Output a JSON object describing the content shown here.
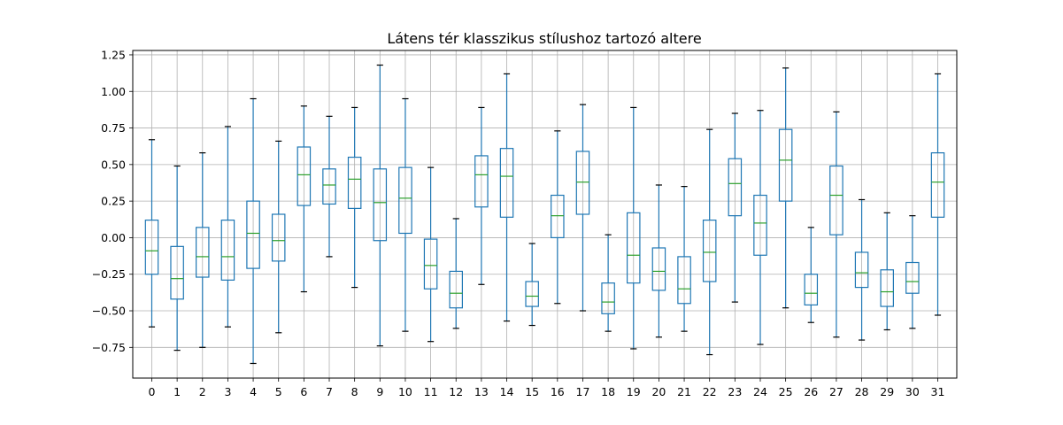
{
  "chart_data": {
    "type": "boxplot",
    "title": "Látens tér klasszikus stílushoz tartozó altere",
    "xlabel": "",
    "ylabel": "",
    "ylim": [
      -0.96,
      1.28
    ],
    "grid": true,
    "categories": [
      "0",
      "1",
      "2",
      "3",
      "4",
      "5",
      "6",
      "7",
      "8",
      "9",
      "10",
      "11",
      "12",
      "13",
      "14",
      "15",
      "16",
      "17",
      "18",
      "19",
      "20",
      "21",
      "22",
      "23",
      "24",
      "25",
      "26",
      "27",
      "28",
      "29",
      "30",
      "31"
    ],
    "yticks": [
      -0.75,
      -0.5,
      -0.25,
      0.0,
      0.25,
      0.5,
      0.75,
      1.0,
      1.25
    ],
    "ytick_labels": [
      "−0.75",
      "−0.50",
      "−0.25",
      "0.00",
      "0.25",
      "0.50",
      "0.75",
      "1.00",
      "1.25"
    ],
    "box_color": "#1f77b4",
    "median_color": "#2ca02c",
    "cap_color": "#000000",
    "grid_color": "#b0b0b0",
    "boxes": [
      {
        "whislo": -0.61,
        "q1": -0.25,
        "med": -0.09,
        "q3": 0.12,
        "whishi": 0.67
      },
      {
        "whislo": -0.77,
        "q1": -0.42,
        "med": -0.28,
        "q3": -0.06,
        "whishi": 0.49
      },
      {
        "whislo": -0.75,
        "q1": -0.27,
        "med": -0.13,
        "q3": 0.07,
        "whishi": 0.58
      },
      {
        "whislo": -0.61,
        "q1": -0.29,
        "med": -0.13,
        "q3": 0.12,
        "whishi": 0.76
      },
      {
        "whislo": -0.86,
        "q1": -0.21,
        "med": 0.03,
        "q3": 0.25,
        "whishi": 0.95
      },
      {
        "whislo": -0.65,
        "q1": -0.16,
        "med": -0.02,
        "q3": 0.16,
        "whishi": 0.66
      },
      {
        "whislo": -0.37,
        "q1": 0.22,
        "med": 0.43,
        "q3": 0.62,
        "whishi": 0.9
      },
      {
        "whislo": -0.13,
        "q1": 0.23,
        "med": 0.36,
        "q3": 0.47,
        "whishi": 0.83
      },
      {
        "whislo": -0.34,
        "q1": 0.2,
        "med": 0.4,
        "q3": 0.55,
        "whishi": 0.89
      },
      {
        "whislo": -0.74,
        "q1": -0.02,
        "med": 0.24,
        "q3": 0.47,
        "whishi": 1.18
      },
      {
        "whislo": -0.64,
        "q1": 0.03,
        "med": 0.27,
        "q3": 0.48,
        "whishi": 0.95
      },
      {
        "whislo": -0.71,
        "q1": -0.35,
        "med": -0.19,
        "q3": -0.01,
        "whishi": 0.48
      },
      {
        "whislo": -0.62,
        "q1": -0.48,
        "med": -0.38,
        "q3": -0.23,
        "whishi": 0.13
      },
      {
        "whislo": -0.32,
        "q1": 0.21,
        "med": 0.43,
        "q3": 0.56,
        "whishi": 0.89
      },
      {
        "whislo": -0.57,
        "q1": 0.14,
        "med": 0.42,
        "q3": 0.61,
        "whishi": 1.12
      },
      {
        "whislo": -0.6,
        "q1": -0.47,
        "med": -0.4,
        "q3": -0.3,
        "whishi": -0.04
      },
      {
        "whislo": -0.45,
        "q1": 0.0,
        "med": 0.15,
        "q3": 0.29,
        "whishi": 0.73
      },
      {
        "whislo": -0.5,
        "q1": 0.16,
        "med": 0.38,
        "q3": 0.59,
        "whishi": 0.91
      },
      {
        "whislo": -0.64,
        "q1": -0.52,
        "med": -0.44,
        "q3": -0.31,
        "whishi": 0.02
      },
      {
        "whislo": -0.76,
        "q1": -0.31,
        "med": -0.12,
        "q3": 0.17,
        "whishi": 0.89
      },
      {
        "whislo": -0.68,
        "q1": -0.36,
        "med": -0.23,
        "q3": -0.07,
        "whishi": 0.36
      },
      {
        "whislo": -0.64,
        "q1": -0.45,
        "med": -0.35,
        "q3": -0.13,
        "whishi": 0.35
      },
      {
        "whislo": -0.8,
        "q1": -0.3,
        "med": -0.1,
        "q3": 0.12,
        "whishi": 0.74
      },
      {
        "whislo": -0.44,
        "q1": 0.15,
        "med": 0.37,
        "q3": 0.54,
        "whishi": 0.85
      },
      {
        "whislo": -0.73,
        "q1": -0.12,
        "med": 0.1,
        "q3": 0.29,
        "whishi": 0.87
      },
      {
        "whislo": -0.48,
        "q1": 0.25,
        "med": 0.53,
        "q3": 0.74,
        "whishi": 1.16
      },
      {
        "whislo": -0.58,
        "q1": -0.46,
        "med": -0.38,
        "q3": -0.25,
        "whishi": 0.07
      },
      {
        "whislo": -0.68,
        "q1": 0.02,
        "med": 0.29,
        "q3": 0.49,
        "whishi": 0.86
      },
      {
        "whislo": -0.7,
        "q1": -0.34,
        "med": -0.24,
        "q3": -0.1,
        "whishi": 0.26
      },
      {
        "whislo": -0.63,
        "q1": -0.47,
        "med": -0.37,
        "q3": -0.22,
        "whishi": 0.17
      },
      {
        "whislo": -0.62,
        "q1": -0.38,
        "med": -0.3,
        "q3": -0.17,
        "whishi": 0.15
      },
      {
        "whislo": -0.53,
        "q1": 0.14,
        "med": 0.38,
        "q3": 0.58,
        "whishi": 1.12
      }
    ]
  }
}
